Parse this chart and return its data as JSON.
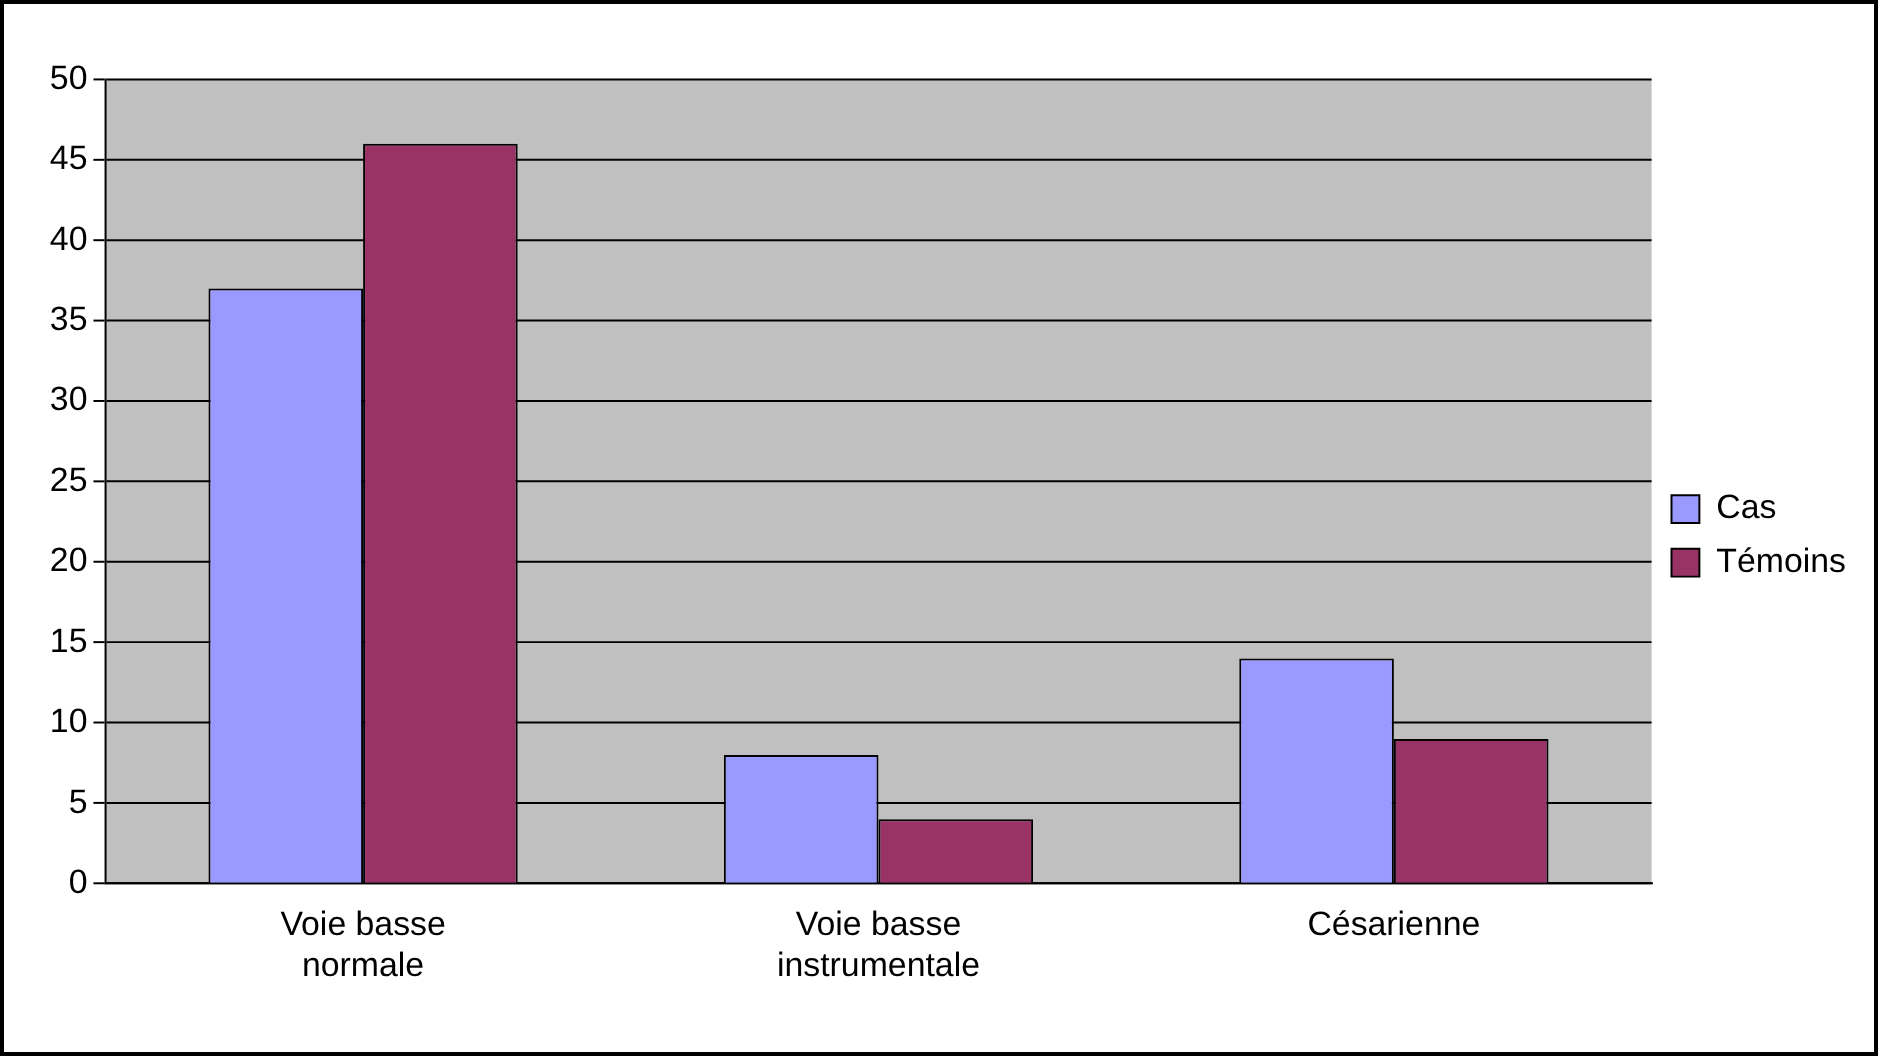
{
  "chart_data": {
    "type": "bar",
    "categories": [
      "Voie basse normale",
      "Voie basse instrumentale",
      "Césarienne"
    ],
    "series": [
      {
        "name": "Cas",
        "color": "#9999ff",
        "values": [
          37,
          8,
          14
        ]
      },
      {
        "name": "Témoins",
        "color": "#993366",
        "values": [
          46,
          4,
          9
        ]
      }
    ],
    "ylim": [
      0,
      50
    ],
    "yticks": [
      0,
      5,
      10,
      15,
      20,
      25,
      30,
      35,
      40,
      45,
      50
    ],
    "grid": "y",
    "legend": "right"
  }
}
